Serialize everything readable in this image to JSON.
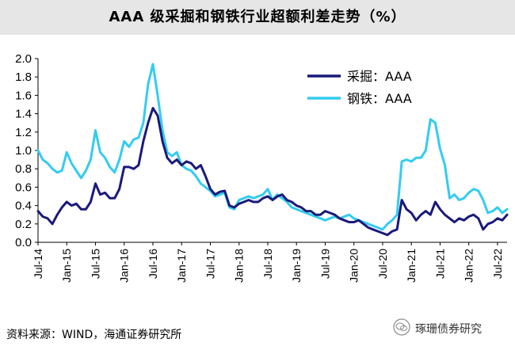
{
  "title": "AAA 级采掘和钢铁行业超额利差走势（%）",
  "source": "资料来源：WIND，海通证券研究所",
  "watermark": "琢珊债券研究",
  "chart_data": {
    "type": "line",
    "title": "AAA 级采掘和钢铁行业超额利差走势（%）",
    "xlabel": "",
    "ylabel": "",
    "x_start": "2014-07",
    "x_end": "2022-09",
    "ylim": [
      0,
      2.0
    ],
    "yticks": [
      0.0,
      0.2,
      0.4,
      0.6,
      0.8,
      1.0,
      1.2,
      1.4,
      1.6,
      1.8,
      2.0
    ],
    "ytick_labels": [
      "0.0",
      "0.2",
      "0.4",
      "0.6",
      "0.8",
      "1.0",
      "1.2",
      "1.4",
      "1.6",
      "1.8",
      "2.0"
    ],
    "xticks": [
      "2014-07",
      "2015-01",
      "2015-07",
      "2016-01",
      "2016-07",
      "2017-01",
      "2017-07",
      "2018-01",
      "2018-07",
      "2019-01",
      "2019-07",
      "2020-01",
      "2020-07",
      "2021-01",
      "2021-07",
      "2022-01",
      "2022-07"
    ],
    "xtick_labels": [
      "Jul-14",
      "Jan-15",
      "Jul-15",
      "Jan-16",
      "Jul-16",
      "Jan-17",
      "Jul-17",
      "Jan-18",
      "Jul-18",
      "Jan-19",
      "Jul-19",
      "Jan-20",
      "Jul-20",
      "Jan-21",
      "Jul-21",
      "Jan-22",
      "Jul-22"
    ],
    "grid": false,
    "legend_position": "top-right",
    "series": [
      {
        "name": "采掘：AAA",
        "color": "#1a1a7a",
        "points": [
          [
            "2014-07",
            0.34
          ],
          [
            "2014-08",
            0.28
          ],
          [
            "2014-09",
            0.26
          ],
          [
            "2014-10",
            0.2
          ],
          [
            "2014-11",
            0.3
          ],
          [
            "2014-12",
            0.38
          ],
          [
            "2015-01",
            0.44
          ],
          [
            "2015-02",
            0.4
          ],
          [
            "2015-03",
            0.42
          ],
          [
            "2015-04",
            0.36
          ],
          [
            "2015-05",
            0.36
          ],
          [
            "2015-06",
            0.44
          ],
          [
            "2015-07",
            0.64
          ],
          [
            "2015-08",
            0.52
          ],
          [
            "2015-09",
            0.54
          ],
          [
            "2015-10",
            0.48
          ],
          [
            "2015-11",
            0.48
          ],
          [
            "2015-12",
            0.58
          ],
          [
            "2016-01",
            0.82
          ],
          [
            "2016-02",
            0.82
          ],
          [
            "2016-03",
            0.8
          ],
          [
            "2016-04",
            0.84
          ],
          [
            "2016-05",
            1.1
          ],
          [
            "2016-06",
            1.3
          ],
          [
            "2016-07",
            1.46
          ],
          [
            "2016-08",
            1.38
          ],
          [
            "2016-09",
            1.1
          ],
          [
            "2016-10",
            0.92
          ],
          [
            "2016-11",
            0.86
          ],
          [
            "2016-12",
            0.9
          ],
          [
            "2017-01",
            0.84
          ],
          [
            "2017-02",
            0.88
          ],
          [
            "2017-03",
            0.86
          ],
          [
            "2017-04",
            0.8
          ],
          [
            "2017-05",
            0.84
          ],
          [
            "2017-06",
            0.72
          ],
          [
            "2017-07",
            0.58
          ],
          [
            "2017-08",
            0.52
          ],
          [
            "2017-09",
            0.55
          ],
          [
            "2017-10",
            0.56
          ],
          [
            "2017-11",
            0.4
          ],
          [
            "2017-12",
            0.38
          ],
          [
            "2018-01",
            0.42
          ],
          [
            "2018-02",
            0.44
          ],
          [
            "2018-03",
            0.46
          ],
          [
            "2018-04",
            0.44
          ],
          [
            "2018-05",
            0.44
          ],
          [
            "2018-06",
            0.48
          ],
          [
            "2018-07",
            0.5
          ],
          [
            "2018-08",
            0.46
          ],
          [
            "2018-09",
            0.5
          ],
          [
            "2018-10",
            0.52
          ],
          [
            "2018-11",
            0.46
          ],
          [
            "2018-12",
            0.44
          ],
          [
            "2019-01",
            0.4
          ],
          [
            "2019-02",
            0.38
          ],
          [
            "2019-03",
            0.34
          ],
          [
            "2019-04",
            0.34
          ],
          [
            "2019-05",
            0.3
          ],
          [
            "2019-06",
            0.3
          ],
          [
            "2019-07",
            0.34
          ],
          [
            "2019-08",
            0.32
          ],
          [
            "2019-09",
            0.3
          ],
          [
            "2019-10",
            0.26
          ],
          [
            "2019-11",
            0.24
          ],
          [
            "2019-12",
            0.22
          ],
          [
            "2020-01",
            0.22
          ],
          [
            "2020-02",
            0.24
          ],
          [
            "2020-03",
            0.2
          ],
          [
            "2020-04",
            0.16
          ],
          [
            "2020-05",
            0.14
          ],
          [
            "2020-06",
            0.12
          ],
          [
            "2020-07",
            0.1
          ],
          [
            "2020-08",
            0.08
          ],
          [
            "2020-09",
            0.12
          ],
          [
            "2020-10",
            0.14
          ],
          [
            "2020-11",
            0.46
          ],
          [
            "2020-12",
            0.36
          ],
          [
            "2021-01",
            0.32
          ],
          [
            "2021-02",
            0.24
          ],
          [
            "2021-03",
            0.3
          ],
          [
            "2021-04",
            0.34
          ],
          [
            "2021-05",
            0.3
          ],
          [
            "2021-06",
            0.44
          ],
          [
            "2021-07",
            0.36
          ],
          [
            "2021-08",
            0.3
          ],
          [
            "2021-09",
            0.26
          ],
          [
            "2021-10",
            0.22
          ],
          [
            "2021-11",
            0.26
          ],
          [
            "2021-12",
            0.24
          ],
          [
            "2022-01",
            0.28
          ],
          [
            "2022-02",
            0.3
          ],
          [
            "2022-03",
            0.26
          ],
          [
            "2022-04",
            0.14
          ],
          [
            "2022-05",
            0.2
          ],
          [
            "2022-06",
            0.22
          ],
          [
            "2022-07",
            0.26
          ],
          [
            "2022-08",
            0.24
          ],
          [
            "2022-09",
            0.3
          ]
        ]
      },
      {
        "name": "钢铁：AAA",
        "color": "#33ccf0",
        "points": [
          [
            "2014-07",
            1.0
          ],
          [
            "2014-08",
            0.9
          ],
          [
            "2014-09",
            0.86
          ],
          [
            "2014-10",
            0.8
          ],
          [
            "2014-11",
            0.76
          ],
          [
            "2014-12",
            0.78
          ],
          [
            "2015-01",
            0.98
          ],
          [
            "2015-02",
            0.86
          ],
          [
            "2015-03",
            0.78
          ],
          [
            "2015-04",
            0.7
          ],
          [
            "2015-05",
            0.78
          ],
          [
            "2015-06",
            0.9
          ],
          [
            "2015-07",
            1.22
          ],
          [
            "2015-08",
            0.98
          ],
          [
            "2015-09",
            0.92
          ],
          [
            "2015-10",
            0.82
          ],
          [
            "2015-11",
            0.76
          ],
          [
            "2015-12",
            0.9
          ],
          [
            "2016-01",
            1.1
          ],
          [
            "2016-02",
            1.04
          ],
          [
            "2016-03",
            1.12
          ],
          [
            "2016-04",
            1.14
          ],
          [
            "2016-05",
            1.3
          ],
          [
            "2016-06",
            1.72
          ],
          [
            "2016-07",
            1.94
          ],
          [
            "2016-08",
            1.6
          ],
          [
            "2016-09",
            1.22
          ],
          [
            "2016-10",
            0.98
          ],
          [
            "2016-11",
            0.94
          ],
          [
            "2016-12",
            0.98
          ],
          [
            "2017-01",
            0.84
          ],
          [
            "2017-02",
            0.8
          ],
          [
            "2017-03",
            0.78
          ],
          [
            "2017-04",
            0.72
          ],
          [
            "2017-05",
            0.64
          ],
          [
            "2017-06",
            0.6
          ],
          [
            "2017-07",
            0.56
          ],
          [
            "2017-08",
            0.5
          ],
          [
            "2017-09",
            0.52
          ],
          [
            "2017-10",
            0.54
          ],
          [
            "2017-11",
            0.38
          ],
          [
            "2017-12",
            0.36
          ],
          [
            "2018-01",
            0.46
          ],
          [
            "2018-02",
            0.48
          ],
          [
            "2018-03",
            0.5
          ],
          [
            "2018-04",
            0.48
          ],
          [
            "2018-05",
            0.5
          ],
          [
            "2018-06",
            0.52
          ],
          [
            "2018-07",
            0.58
          ],
          [
            "2018-08",
            0.46
          ],
          [
            "2018-09",
            0.52
          ],
          [
            "2018-10",
            0.48
          ],
          [
            "2018-11",
            0.44
          ],
          [
            "2018-12",
            0.38
          ],
          [
            "2019-01",
            0.36
          ],
          [
            "2019-02",
            0.34
          ],
          [
            "2019-03",
            0.32
          ],
          [
            "2019-04",
            0.3
          ],
          [
            "2019-05",
            0.28
          ],
          [
            "2019-06",
            0.26
          ],
          [
            "2019-07",
            0.24
          ],
          [
            "2019-08",
            0.26
          ],
          [
            "2019-09",
            0.28
          ],
          [
            "2019-10",
            0.26
          ],
          [
            "2019-11",
            0.28
          ],
          [
            "2019-12",
            0.3
          ],
          [
            "2020-01",
            0.26
          ],
          [
            "2020-02",
            0.24
          ],
          [
            "2020-03",
            0.22
          ],
          [
            "2020-04",
            0.2
          ],
          [
            "2020-05",
            0.18
          ],
          [
            "2020-06",
            0.16
          ],
          [
            "2020-07",
            0.14
          ],
          [
            "2020-08",
            0.2
          ],
          [
            "2020-09",
            0.24
          ],
          [
            "2020-10",
            0.3
          ],
          [
            "2020-11",
            0.88
          ],
          [
            "2020-12",
            0.9
          ],
          [
            "2021-01",
            0.88
          ],
          [
            "2021-02",
            0.92
          ],
          [
            "2021-03",
            0.92
          ],
          [
            "2021-04",
            1.0
          ],
          [
            "2021-05",
            1.34
          ],
          [
            "2021-06",
            1.3
          ],
          [
            "2021-07",
            1.02
          ],
          [
            "2021-08",
            0.84
          ],
          [
            "2021-09",
            0.48
          ],
          [
            "2021-10",
            0.52
          ],
          [
            "2021-11",
            0.46
          ],
          [
            "2021-12",
            0.48
          ],
          [
            "2022-01",
            0.54
          ],
          [
            "2022-02",
            0.58
          ],
          [
            "2022-03",
            0.56
          ],
          [
            "2022-04",
            0.46
          ],
          [
            "2022-05",
            0.32
          ],
          [
            "2022-06",
            0.34
          ],
          [
            "2022-07",
            0.38
          ],
          [
            "2022-08",
            0.32
          ],
          [
            "2022-09",
            0.36
          ]
        ]
      }
    ]
  }
}
